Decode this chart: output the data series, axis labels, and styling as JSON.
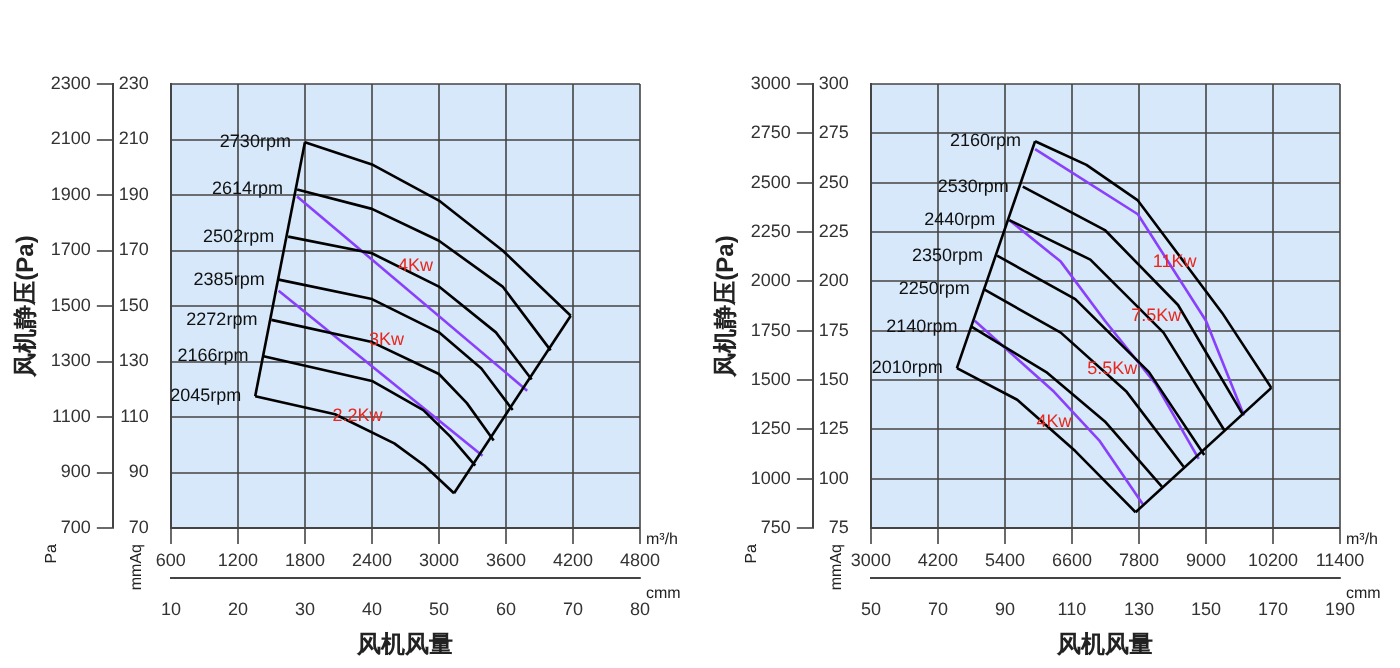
{
  "chart_data": [
    {
      "type": "line",
      "xlabel": "风机风量",
      "ylabel": "风机静压(Pa)",
      "y2label": "mmAq",
      "x2label": "cmm",
      "grid": true,
      "legend": false,
      "marker": "none",
      "xlim": [
        600,
        4800
      ],
      "xticks": [
        600,
        1200,
        1800,
        2400,
        3000,
        3600,
        4200,
        4800
      ],
      "x2lim": [
        10,
        80
      ],
      "x2ticks": [
        10,
        20,
        30,
        40,
        50,
        60,
        70,
        80
      ],
      "ylim": [
        700,
        2300
      ],
      "yticks": [
        700,
        900,
        1100,
        1300,
        1500,
        1700,
        1900,
        2100,
        2300
      ],
      "y2lim": [
        70,
        230
      ],
      "y2ticks": [
        70,
        90,
        110,
        130,
        150,
        170,
        190,
        210,
        230
      ],
      "annotations": [
        "m³/h",
        "Pa",
        {
          "text": "4Kw",
          "x": 2790,
          "y": 1610
        },
        {
          "text": "3Kw",
          "x": 2530,
          "y": 1345
        },
        {
          "text": "2.2Kw",
          "x": 2270,
          "y": 1070
        }
      ],
      "series": [
        {
          "name": "2730rpm",
          "color": "#000000",
          "x": [
            1800,
            2400,
            3000,
            3570,
            4180
          ],
          "values": [
            2090,
            2010,
            1880,
            1700,
            1465
          ]
        },
        {
          "name": "2614rpm",
          "color": "#000000",
          "x": [
            1730,
            2400,
            3000,
            3570,
            4000
          ],
          "values": [
            1920,
            1850,
            1735,
            1570,
            1340
          ]
        },
        {
          "name": "2502rpm",
          "color": "#000000",
          "x": [
            1650,
            2400,
            3000,
            3510,
            3830
          ],
          "values": [
            1750,
            1690,
            1570,
            1405,
            1235
          ]
        },
        {
          "name": "2385rpm",
          "color": "#000000",
          "x": [
            1565,
            2400,
            3000,
            3380,
            3660
          ],
          "values": [
            1595,
            1525,
            1405,
            1275,
            1125
          ]
        },
        {
          "name": "2272rpm",
          "color": "#000000",
          "x": [
            1500,
            2400,
            3000,
            3250,
            3490
          ],
          "values": [
            1450,
            1370,
            1255,
            1150,
            1015
          ]
        },
        {
          "name": "2166rpm",
          "color": "#000000",
          "x": [
            1420,
            2400,
            2860,
            3100,
            3325
          ],
          "values": [
            1320,
            1230,
            1125,
            1030,
            925
          ]
        },
        {
          "name": "2045rpm",
          "color": "#000000",
          "x": [
            1355,
            2070,
            2600,
            2870,
            3135
          ],
          "values": [
            1175,
            1110,
            1005,
            925,
            825
          ]
        },
        {
          "color": "#000000",
          "x": [
            1355,
            1800
          ],
          "values": [
            1175,
            2090
          ]
        },
        {
          "color": "#000000",
          "x": [
            3135,
            4180
          ],
          "values": [
            825,
            1465
          ]
        },
        {
          "color": "#8a3ffc",
          "x": [
            1730,
            3790
          ],
          "values": [
            1895,
            1195
          ]
        },
        {
          "color": "#8a3ffc",
          "x": [
            1565,
            3390
          ],
          "values": [
            1555,
            960
          ]
        }
      ]
    },
    {
      "type": "line",
      "xlabel": "风机风量",
      "ylabel": "风机静压(Pa)",
      "y2label": "mmAq",
      "x2label": "cmm",
      "grid": true,
      "legend": false,
      "marker": "none",
      "xlim": [
        3000,
        11400
      ],
      "xticks": [
        3000,
        4200,
        5400,
        6600,
        7800,
        9000,
        10200,
        11400
      ],
      "x2lim": [
        50,
        190
      ],
      "x2ticks": [
        50,
        70,
        90,
        110,
        130,
        150,
        170,
        190
      ],
      "ylim": [
        750,
        3000
      ],
      "yticks": [
        750,
        1000,
        1250,
        1500,
        1750,
        2000,
        2250,
        2500,
        2750,
        3000
      ],
      "y2lim": [
        75,
        300
      ],
      "y2ticks": [
        75,
        100,
        125,
        150,
        175,
        200,
        225,
        250,
        275,
        300
      ],
      "annotations": [
        "m³/h",
        "Pa",
        {
          "text": "11Kw",
          "x": 8440,
          "y": 2050
        },
        {
          "text": "7.5Kw",
          "x": 8110,
          "y": 1780
        },
        {
          "text": "5.5Kw",
          "x": 7320,
          "y": 1510
        },
        {
          "text": "4Kw",
          "x": 6280,
          "y": 1240
        }
      ],
      "series": [
        {
          "name": "2160rpm",
          "color": "#000000",
          "x": [
            5940,
            6860,
            7780,
            9290,
            10170
          ],
          "values": [
            2710,
            2590,
            2410,
            1840,
            1460
          ]
        },
        {
          "name": "2530rpm",
          "color": "#000000",
          "x": [
            5720,
            7190,
            8500,
            9650
          ],
          "values": [
            2480,
            2260,
            1880,
            1330
          ]
        },
        {
          "name": "2440rpm",
          "color": "#000000",
          "x": [
            5480,
            6930,
            8240,
            9340
          ],
          "values": [
            2310,
            2110,
            1740,
            1240
          ]
        },
        {
          "name": "2350rpm",
          "color": "#000000",
          "x": [
            5260,
            6660,
            7980,
            8970
          ],
          "values": [
            2130,
            1910,
            1540,
            1120
          ]
        },
        {
          "name": "2250rpm",
          "color": "#000000",
          "x": [
            5020,
            6400,
            7580,
            8600
          ],
          "values": [
            1960,
            1740,
            1440,
            1060
          ]
        },
        {
          "name": "2140rpm",
          "color": "#000000",
          "x": [
            4800,
            6140,
            7190,
            8210
          ],
          "values": [
            1770,
            1540,
            1290,
            960
          ]
        },
        {
          "name": "2010rpm",
          "color": "#000000",
          "x": [
            4540,
            5620,
            6660,
            7740
          ],
          "values": [
            1560,
            1400,
            1140,
            830
          ]
        },
        {
          "color": "#000000",
          "x": [
            4540,
            5940
          ],
          "values": [
            1560,
            2710
          ]
        },
        {
          "color": "#000000",
          "x": [
            7740,
            10170
          ],
          "values": [
            830,
            1460
          ]
        },
        {
          "color": "#8a3ffc",
          "x": [
            5940,
            7780,
            9000,
            9680
          ],
          "values": [
            2670,
            2340,
            1800,
            1320
          ]
        },
        {
          "color": "#8a3ffc",
          "x": [
            5480,
            6400,
            7190,
            8100,
            8870
          ],
          "values": [
            2310,
            2100,
            1800,
            1480,
            1100
          ]
        },
        {
          "color": "#8a3ffc",
          "x": [
            4860,
            6280,
            7100,
            7870
          ],
          "values": [
            1800,
            1440,
            1190,
            870
          ]
        }
      ]
    }
  ]
}
